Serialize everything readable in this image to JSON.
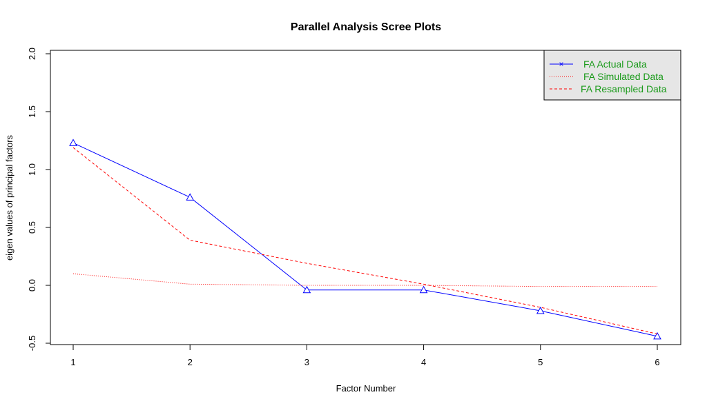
{
  "chart_data": {
    "type": "line",
    "title": "Parallel Analysis Scree Plots",
    "xlabel": "Factor Number",
    "ylabel": "eigen values of principal factors",
    "x": [
      1,
      2,
      3,
      4,
      5,
      6
    ],
    "xticks": [
      "1",
      "2",
      "3",
      "4",
      "5",
      "6"
    ],
    "yticks": [
      "-0.5",
      "0.0",
      "0.5",
      "1.0",
      "1.5",
      "2.0"
    ],
    "ylim": [
      -0.5,
      2.0
    ],
    "xlim": [
      1,
      6
    ],
    "grid": false,
    "legend_position": "topright",
    "series": [
      {
        "name": "FA  Actual Data",
        "color": "#0000ff",
        "style": "solid",
        "marker": "triangle",
        "values": [
          1.23,
          0.76,
          -0.04,
          -0.04,
          -0.22,
          -0.44
        ]
      },
      {
        "name": "FA  Simulated Data",
        "color": "#ff0000",
        "style": "dotted",
        "marker": "none",
        "values": [
          0.1,
          0.01,
          0.0,
          0.0,
          -0.01,
          -0.01
        ]
      },
      {
        "name": "FA  Resampled Data",
        "color": "#ff0000",
        "style": "dashed",
        "marker": "none",
        "values": [
          1.19,
          0.39,
          0.19,
          0.01,
          -0.19,
          -0.42
        ]
      }
    ]
  },
  "legend": {
    "items": [
      {
        "label": "FA  Actual Data",
        "symbol": "x-line"
      },
      {
        "label": "FA  Simulated Data",
        "symbol": "dotted"
      },
      {
        "label": "FA  Resampled Data",
        "symbol": "dashed"
      }
    ],
    "background": "#e6e6e6",
    "text_color": "#1a9a1a"
  }
}
